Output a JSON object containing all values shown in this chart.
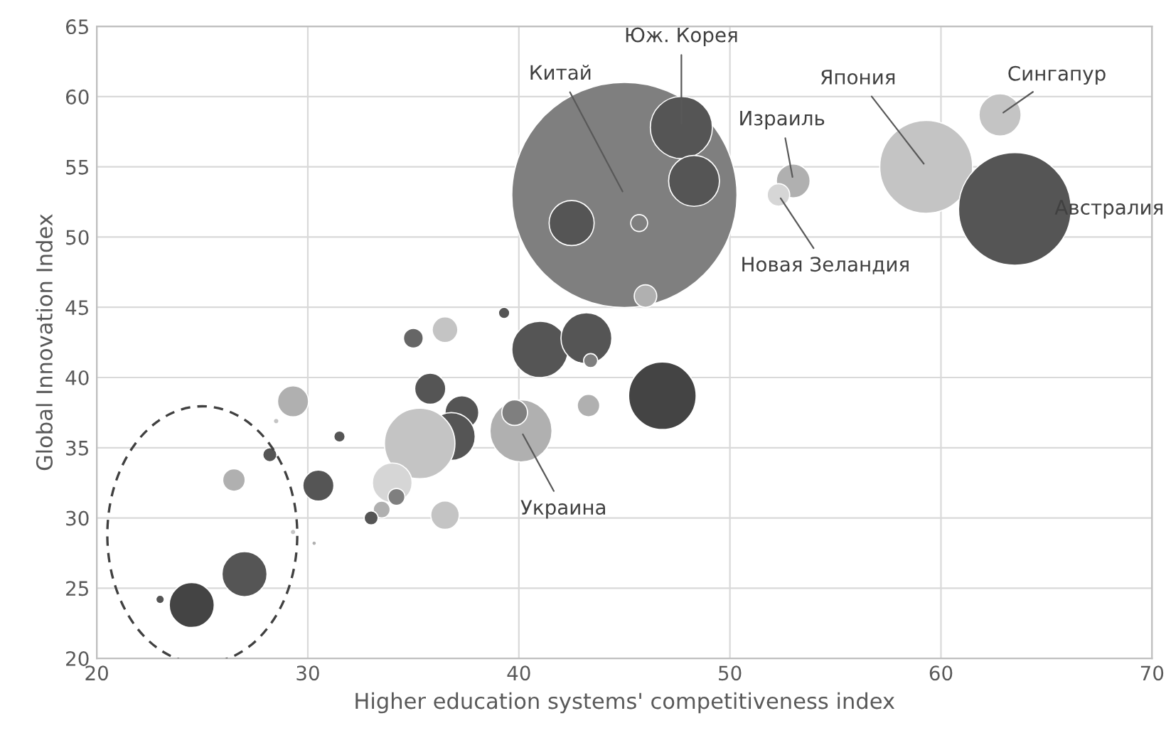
{
  "chart_data": {
    "type": "bubble",
    "xlabel": "Higher education systems' competitiveness index",
    "ylabel": "Global Innovation Index",
    "x": [
      45,
      47.7,
      48.3,
      42.5,
      45.7,
      46,
      59.3,
      63.5,
      62.8,
      53,
      52.3,
      39.3,
      36.5,
      35,
      41,
      43.2,
      43.4,
      46.8,
      43.3,
      35.8,
      37.3,
      36.8,
      35.3,
      40.1,
      39.8,
      34,
      34.2,
      33.5,
      33,
      36.5,
      31.5,
      30.5,
      29.3,
      28.2,
      28.5,
      26.5,
      27,
      24.5,
      23,
      29.3,
      30.3
    ],
    "values": [
      53,
      57.8,
      54,
      51,
      51,
      45.8,
      55,
      52,
      58.7,
      54,
      53,
      44.6,
      43.4,
      42.8,
      42,
      42.8,
      41.2,
      38.7,
      38,
      39.2,
      37.5,
      35.8,
      35.3,
      36.2,
      37.5,
      32.5,
      31.5,
      30.6,
      30,
      30.2,
      35.8,
      32.3,
      38.3,
      34.5,
      36.9,
      32.7,
      26,
      23.8,
      24.2,
      29,
      28.2
    ],
    "sizes": [
      1,
      0.076,
      0.051,
      0.04,
      0.0056,
      0.01,
      0.17,
      0.25,
      0.035,
      0.0225,
      0.01,
      0.0025,
      0.013,
      0.0077,
      0.0625,
      0.051,
      0.0039,
      0.09,
      0.01,
      0.019,
      0.0225,
      0.045,
      0.098,
      0.076,
      0.013,
      0.031,
      0.0056,
      0.0056,
      0.0039,
      0.016,
      0.0025,
      0.019,
      0.019,
      0.0039,
      0.0006,
      0.01,
      0.04,
      0.04,
      0.0014,
      0.0006,
      0.0004
    ],
    "colors": [
      "#7f7f7f",
      "#555555",
      "#555555",
      "#555555",
      "#7f7f7f",
      "#b0b0b0",
      "#c4c4c4",
      "#555555",
      "#c4c4c4",
      "#b0b0b0",
      "#d6d6d6",
      "#555555",
      "#c4c4c4",
      "#666666",
      "#555555",
      "#555555",
      "#7f7f7f",
      "#444444",
      "#b0b0b0",
      "#555555",
      "#555555",
      "#555555",
      "#c4c4c4",
      "#b0b0b0",
      "#7f7f7f",
      "#d6d6d6",
      "#7f7f7f",
      "#b0b0b0",
      "#555555",
      "#c4c4c4",
      "#555555",
      "#555555",
      "#b0b0b0",
      "#555555",
      "#c4c4c4",
      "#b0b0b0",
      "#555555",
      "#444444",
      "#555555",
      "#c4c4c4",
      "#b0b0b0"
    ],
    "xlim": [
      20,
      70
    ],
    "ylim": [
      20,
      65
    ],
    "xticks": [
      20,
      30,
      40,
      50,
      60,
      70
    ],
    "yticks": [
      20,
      25,
      30,
      35,
      40,
      45,
      50,
      55,
      60,
      65
    ],
    "grid": true,
    "annotations": [
      {
        "text": "Китай",
        "x": 45,
        "y": 53
      },
      {
        "text": "Юж. Корея",
        "x": 47.7,
        "y": 57.8
      },
      {
        "text": "Япония",
        "x": 59.3,
        "y": 55
      },
      {
        "text": "Сингапур",
        "x": 62.8,
        "y": 58.7
      },
      {
        "text": "Израиль",
        "x": 53,
        "y": 54
      },
      {
        "text": "Австралия",
        "x": 63.5,
        "y": 52
      },
      {
        "text": "Новая Зеландия",
        "x": 52.3,
        "y": 53
      },
      {
        "text": "Украина",
        "x": 40.1,
        "y": 36.2
      }
    ]
  }
}
